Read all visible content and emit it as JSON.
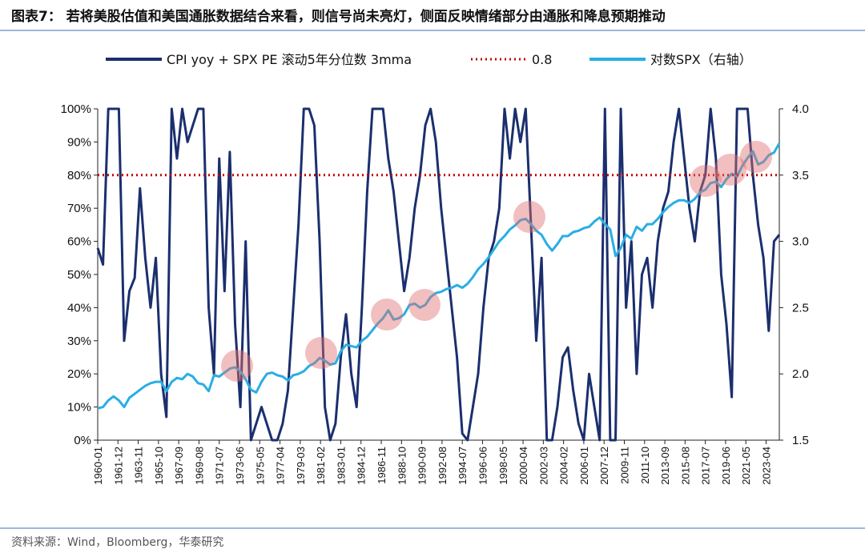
{
  "chart_data": {
    "type": "line",
    "title": "图表7：  若将美股估值和美国通胀数据结合来看，则信号尚未亮灯，侧面反映情绪部分由通胀和降息预期推动",
    "source": "资料来源：Wind，Bloomberg，华泰研究",
    "x": [
      "1960-01",
      "1960-07",
      "1961-01",
      "1961-07",
      "1962-01",
      "1962-07",
      "1963-01",
      "1963-07",
      "1964-01",
      "1964-07",
      "1965-01",
      "1965-07",
      "1966-01",
      "1966-07",
      "1967-01",
      "1967-07",
      "1968-01",
      "1968-07",
      "1969-01",
      "1969-07",
      "1970-01",
      "1970-07",
      "1971-01",
      "1971-07",
      "1972-01",
      "1972-07",
      "1973-01",
      "1973-07",
      "1974-01",
      "1974-07",
      "1975-01",
      "1975-07",
      "1976-01",
      "1976-07",
      "1977-01",
      "1977-07",
      "1978-01",
      "1978-07",
      "1979-01",
      "1979-07",
      "1980-01",
      "1980-07",
      "1981-01",
      "1981-07",
      "1982-01",
      "1982-07",
      "1983-01",
      "1983-07",
      "1984-01",
      "1984-07",
      "1985-01",
      "1985-07",
      "1986-01",
      "1986-07",
      "1987-01",
      "1987-07",
      "1988-01",
      "1988-07",
      "1989-01",
      "1989-07",
      "1990-01",
      "1990-07",
      "1991-01",
      "1991-07",
      "1992-01",
      "1992-07",
      "1993-01",
      "1993-07",
      "1994-01",
      "1994-07",
      "1995-01",
      "1995-07",
      "1996-01",
      "1996-07",
      "1997-01",
      "1997-07",
      "1998-01",
      "1998-07",
      "1999-01",
      "1999-07",
      "2000-01",
      "2000-07",
      "2001-01",
      "2001-07",
      "2002-01",
      "2002-07",
      "2003-01",
      "2003-07",
      "2004-01",
      "2004-07",
      "2005-01",
      "2005-07",
      "2006-01",
      "2006-07",
      "2007-01",
      "2007-07",
      "2008-01",
      "2008-07",
      "2009-01",
      "2009-07",
      "2010-01",
      "2010-07",
      "2011-01",
      "2011-07",
      "2012-01",
      "2012-07",
      "2013-01",
      "2013-07",
      "2014-01",
      "2014-07",
      "2015-01",
      "2015-07",
      "2016-01",
      "2016-07",
      "2017-01",
      "2017-07",
      "2018-01",
      "2018-07",
      "2019-01",
      "2019-07",
      "2020-01",
      "2020-07",
      "2021-01",
      "2021-07",
      "2022-01",
      "2022-07",
      "2023-01",
      "2023-07",
      "2024-01",
      "2024-07"
    ],
    "series": [
      {
        "name": "CPI yoy + SPX PE 滚动5年分位数 3mma",
        "color": "#1b2f6e",
        "axis": "y",
        "values": [
          58,
          53,
          100,
          100,
          100,
          30,
          45,
          49,
          76,
          55,
          40,
          55,
          20,
          7,
          100,
          85,
          100,
          90,
          95,
          100,
          100,
          40,
          20,
          85,
          45,
          87,
          35,
          10,
          60,
          0,
          5,
          10,
          5,
          0,
          0,
          5,
          15,
          40,
          65,
          100,
          100,
          95,
          60,
          10,
          0,
          5,
          25,
          38,
          20,
          10,
          40,
          75,
          100,
          100,
          100,
          85,
          75,
          60,
          45,
          55,
          70,
          80,
          95,
          100,
          90,
          70,
          55,
          40,
          25,
          2,
          0,
          10,
          20,
          40,
          55,
          60,
          70,
          100,
          85,
          100,
          90,
          100,
          65,
          30,
          55,
          0,
          0,
          10,
          25,
          28,
          15,
          5,
          0,
          20,
          10,
          0,
          100,
          0,
          0,
          100,
          40,
          60,
          20,
          50,
          55,
          40,
          60,
          70,
          75,
          90,
          100,
          85,
          70,
          60,
          75,
          80,
          100,
          85,
          50,
          35,
          13,
          100,
          100,
          100,
          80,
          65,
          55,
          33,
          60,
          62
        ]
      },
      {
        "name": "对数SPX（右轴）",
        "color": "#29aee4",
        "axis": "y2",
        "values": [
          1.74,
          1.75,
          1.8,
          1.83,
          1.8,
          1.75,
          1.82,
          1.85,
          1.88,
          1.91,
          1.93,
          1.94,
          1.94,
          1.87,
          1.94,
          1.97,
          1.96,
          2.0,
          1.98,
          1.93,
          1.92,
          1.87,
          1.99,
          1.98,
          2.01,
          2.04,
          2.05,
          2.02,
          1.96,
          1.88,
          1.86,
          1.94,
          2.0,
          2.01,
          1.99,
          1.98,
          1.95,
          1.99,
          2.0,
          2.02,
          2.06,
          2.08,
          2.12,
          2.1,
          2.07,
          2.08,
          2.17,
          2.22,
          2.21,
          2.2,
          2.25,
          2.28,
          2.33,
          2.38,
          2.42,
          2.48,
          2.41,
          2.42,
          2.45,
          2.52,
          2.53,
          2.5,
          2.52,
          2.58,
          2.61,
          2.62,
          2.64,
          2.65,
          2.67,
          2.65,
          2.68,
          2.73,
          2.79,
          2.83,
          2.88,
          2.94,
          3.0,
          3.04,
          3.09,
          3.12,
          3.16,
          3.17,
          3.13,
          3.08,
          3.05,
          2.98,
          2.93,
          2.98,
          3.04,
          3.04,
          3.07,
          3.08,
          3.1,
          3.11,
          3.15,
          3.18,
          3.13,
          3.09,
          2.89,
          2.95,
          3.05,
          3.02,
          3.11,
          3.08,
          3.13,
          3.13,
          3.17,
          3.22,
          3.26,
          3.29,
          3.31,
          3.31,
          3.29,
          3.32,
          3.37,
          3.39,
          3.44,
          3.45,
          3.41,
          3.47,
          3.51,
          3.49,
          3.57,
          3.63,
          3.68,
          3.58,
          3.6,
          3.65,
          3.67,
          3.74
        ]
      }
    ],
    "reference_lines": [
      {
        "name": "0.8",
        "value": 80,
        "color": "#c00000",
        "axis": "y"
      }
    ],
    "xlim": [
      "1960-01",
      "2024-07"
    ],
    "xticks": [
      "1960-01",
      "1961-12",
      "1963-11",
      "1965-10",
      "1967-09",
      "1969-08",
      "1971-07",
      "1973-06",
      "1975-05",
      "1977-04",
      "1979-03",
      "1981-02",
      "1983-01",
      "1984-12",
      "1986-11",
      "1988-10",
      "1990-09",
      "1992-08",
      "1994-07",
      "1996-06",
      "1998-05",
      "2000-04",
      "2002-03",
      "2004-02",
      "2006-01",
      "2007-12",
      "2009-11",
      "2011-10",
      "2013-09",
      "2015-08",
      "2017-07",
      "2019-06",
      "2021-05",
      "2023-04"
    ],
    "ylim": [
      0,
      100
    ],
    "yticks": [
      {
        "value": 0,
        "label": "0%"
      },
      {
        "value": 10,
        "label": "10%"
      },
      {
        "value": 20,
        "label": "20%"
      },
      {
        "value": 30,
        "label": "30%"
      },
      {
        "value": 40,
        "label": "40%"
      },
      {
        "value": 50,
        "label": "50%"
      },
      {
        "value": 60,
        "label": "60%"
      },
      {
        "value": 70,
        "label": "70%"
      },
      {
        "value": 80,
        "label": "80%"
      },
      {
        "value": 90,
        "label": "90%"
      },
      {
        "value": 100,
        "label": "100%"
      }
    ],
    "y2lim": [
      1.5,
      4.0
    ],
    "y2ticks": [
      {
        "value": 1.5,
        "label": "1.5"
      },
      {
        "value": 2.0,
        "label": "2.0"
      },
      {
        "value": 2.5,
        "label": "2.5"
      },
      {
        "value": 3.0,
        "label": "3.0"
      },
      {
        "value": 3.5,
        "label": "3.5"
      },
      {
        "value": 4.0,
        "label": "4.0"
      }
    ]
  }
}
